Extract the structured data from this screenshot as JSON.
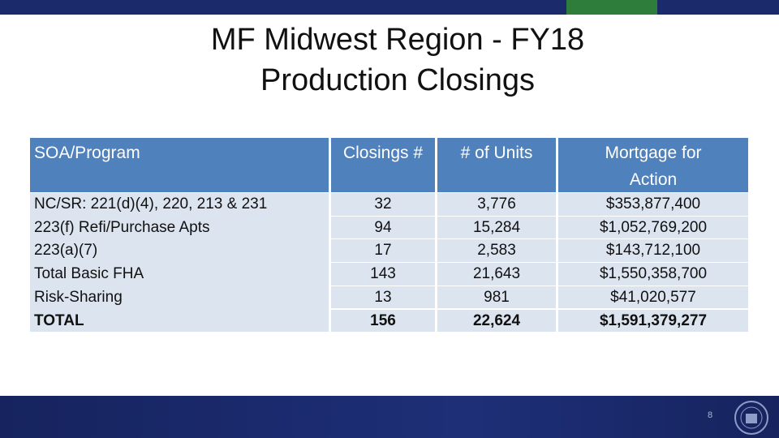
{
  "title": [
    "MF Midwest Region - FY18",
    "Production Closings"
  ],
  "table": {
    "headers": [
      "SOA/Program",
      "Closings #",
      "# of Units",
      "Mortgage for Action"
    ],
    "rows": [
      [
        "NC/SR: 221(d)(4), 220, 213 & 231",
        "32",
        "3,776",
        "$353,877,400"
      ],
      [
        "223(f) Refi/Purchase Apts",
        "94",
        "15,284",
        "$1,052,769,200"
      ],
      [
        "223(a)(7)",
        "17",
        "2,583",
        "$143,712,100"
      ],
      [
        "Total Basic FHA",
        "143",
        "21,643",
        "$1,550,358,700"
      ],
      [
        "Risk-Sharing",
        "13",
        "981",
        "$41,020,577"
      ],
      [
        "TOTAL",
        "156",
        "22,624",
        "$1,591,379,277"
      ]
    ]
  },
  "page_number": "8"
}
